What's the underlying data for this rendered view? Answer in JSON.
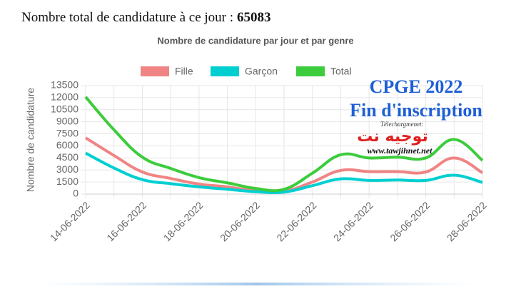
{
  "header": {
    "label": "Nombre total de candidature à ce jour :",
    "total": 65083
  },
  "chart_data": {
    "type": "line",
    "title": "Nombre de candidature par jour et par genre",
    "y_label": "Nombre de candidature",
    "categories": [
      "14-06-2022",
      null,
      "16-06-2022",
      null,
      "18-06-2022",
      null,
      "20-06-2022",
      null,
      "22-06-2022",
      null,
      "24-06-2022",
      null,
      "26-06-2022",
      null,
      "28-06-2022"
    ],
    "series": [
      {
        "name": "Fille",
        "color": "#f08484",
        "values": [
          7000,
          4800,
          2750,
          1950,
          1250,
          900,
          400,
          350,
          1500,
          2950,
          2800,
          2800,
          2750,
          4500,
          2650
        ]
      },
      {
        "name": "Garçon",
        "color": "#00cfd1",
        "values": [
          5100,
          3250,
          1800,
          1300,
          900,
          600,
          300,
          250,
          1050,
          1900,
          1700,
          1750,
          1700,
          2350,
          1450
        ]
      },
      {
        "name": "Total",
        "color": "#3ccc3c",
        "values": [
          12100,
          8000,
          4600,
          3200,
          2050,
          1400,
          700,
          600,
          2600,
          4900,
          4500,
          4600,
          4500,
          6800,
          4200
        ]
      }
    ],
    "ylim": [
      0,
      13500
    ],
    "yticks": [
      0,
      1500,
      3000,
      4500,
      6000,
      7500,
      9000,
      10500,
      12000,
      13500
    ],
    "grid": true
  },
  "watermark": {
    "title": "CPGE 2022",
    "subtitle": "Fin d'inscription",
    "caption": "Télechargmenet:",
    "logo": "توجيه نت",
    "url": "www.tawjihnet.net"
  }
}
